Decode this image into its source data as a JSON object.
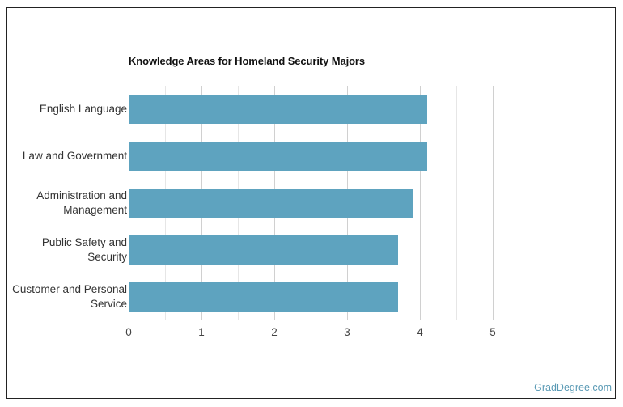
{
  "chart_data": {
    "type": "bar",
    "orientation": "horizontal",
    "title": "Knowledge Areas for Homeland Security Majors",
    "xlabel": "",
    "ylabel": "",
    "categories": [
      "English Language",
      "Law and Government",
      "Administration and Management",
      "Public Safety and Security",
      "Customer and Personal Service"
    ],
    "category_lines": [
      [
        "English Language"
      ],
      [
        "Law and Government"
      ],
      [
        "Administration and",
        "Management"
      ],
      [
        "Public Safety and",
        "Security"
      ],
      [
        "Customer and Personal",
        "Service"
      ]
    ],
    "values": [
      4.1,
      4.1,
      3.9,
      3.7,
      3.7
    ],
    "xlim": [
      0,
      5
    ],
    "xticks": [
      "0",
      "1",
      "2",
      "3",
      "4",
      "5"
    ],
    "grid": true,
    "legend": null,
    "bar_color": "#5ea3bf"
  },
  "watermark": "GradDegree.com"
}
